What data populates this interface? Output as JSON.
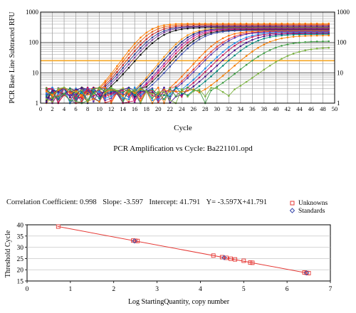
{
  "chart_data": [
    {
      "type": "line",
      "title": "PCR Amplification vs Cycle: Ba221101.opd",
      "xlabel": "Cycle",
      "ylabel": "PCR Base Line Subtracted RFU",
      "xlim": [
        0,
        50
      ],
      "ylim": [
        1,
        1000
      ],
      "yscale": "log",
      "grid": true,
      "x_ticks": [
        "0",
        "2",
        "4",
        "6",
        "8",
        "10",
        "12",
        "14",
        "16",
        "18",
        "20",
        "22",
        "24",
        "26",
        "28",
        "30",
        "32",
        "34",
        "36",
        "38",
        "40",
        "42",
        "44",
        "46",
        "48",
        "50"
      ],
      "y_ticks": [
        "1",
        "10",
        "100",
        "1000"
      ],
      "threshold": 25,
      "threshold_color": "#f5a623",
      "series": [
        {
          "color": "#ff7f00",
          "y0": 18,
          "k": 0.65,
          "top": 420
        },
        {
          "color": "#e8641a",
          "y0": 18.5,
          "k": 0.62,
          "top": 390
        },
        {
          "color": "#c62828",
          "y0": 19,
          "k": 0.6,
          "top": 360
        },
        {
          "color": "#2e3b8c",
          "y0": 19.5,
          "k": 0.58,
          "top": 340
        },
        {
          "color": "#7b3fa0",
          "y0": 20,
          "k": 0.57,
          "top": 330
        },
        {
          "color": "#111111",
          "y0": 20.5,
          "k": 0.56,
          "top": 310
        },
        {
          "color": "#ff9a1f",
          "y0": 24.5,
          "k": 0.6,
          "top": 300
        },
        {
          "color": "#1b2a7a",
          "y0": 25,
          "k": 0.58,
          "top": 290
        },
        {
          "color": "#8e24aa",
          "y0": 25.5,
          "k": 0.58,
          "top": 280
        },
        {
          "color": "#d81b60",
          "y0": 26,
          "k": 0.56,
          "top": 270
        },
        {
          "color": "#222222",
          "y0": 26.5,
          "k": 0.55,
          "top": 260
        },
        {
          "color": "#3949ab",
          "y0": 27,
          "k": 0.55,
          "top": 250
        },
        {
          "color": "#ff6f00",
          "y0": 30.5,
          "k": 0.55,
          "top": 240
        },
        {
          "color": "#e53935",
          "y0": 31.5,
          "k": 0.53,
          "top": 230
        },
        {
          "color": "#5e35b1",
          "y0": 32,
          "k": 0.52,
          "top": 225
        },
        {
          "color": "#1e88e5",
          "y0": 33.5,
          "k": 0.5,
          "top": 215
        },
        {
          "color": "#c2185b",
          "y0": 34,
          "k": 0.5,
          "top": 205
        },
        {
          "color": "#4a148c",
          "y0": 35,
          "k": 0.48,
          "top": 195
        },
        {
          "color": "#00897b",
          "y0": 36,
          "k": 0.47,
          "top": 185
        },
        {
          "color": "#f57c00",
          "y0": 38,
          "k": 0.45,
          "top": 170
        },
        {
          "color": "#43a047",
          "y0": 39,
          "k": 0.42,
          "top": 110
        },
        {
          "color": "#7cb342",
          "y0": 42,
          "k": 0.4,
          "top": 70
        }
      ]
    },
    {
      "type": "scatter",
      "xlabel": "Log StartingQuantity, copy number",
      "ylabel": "Threshold Cycle",
      "xlim": [
        0,
        7
      ],
      "ylim": [
        15,
        40
      ],
      "x_ticks": [
        "0",
        "1",
        "2",
        "3",
        "4",
        "5",
        "6",
        "7"
      ],
      "y_ticks": [
        "15",
        "20",
        "25",
        "30",
        "35",
        "40"
      ],
      "legend_position": "top-right",
      "fit": {
        "slope": -3.597,
        "intercept": 41.791
      },
      "series": [
        {
          "name": "Unknowns",
          "marker": "square",
          "color": "#e53935",
          "points": [
            [
              0.72,
              39.2
            ],
            [
              2.45,
              33.0
            ],
            [
              2.5,
              32.9
            ],
            [
              2.55,
              32.8
            ],
            [
              4.3,
              26.3
            ],
            [
              4.5,
              25.6
            ],
            [
              4.6,
              25.3
            ],
            [
              4.7,
              24.9
            ],
            [
              4.8,
              24.6
            ],
            [
              5.0,
              24.0
            ],
            [
              5.15,
              23.2
            ],
            [
              5.2,
              23.1
            ],
            [
              6.4,
              18.8
            ],
            [
              6.45,
              18.6
            ],
            [
              6.5,
              18.5
            ]
          ]
        },
        {
          "name": "Standards",
          "marker": "diamond",
          "color": "#3949ab",
          "points": [
            [
              2.48,
              32.8
            ],
            [
              4.55,
              25.4
            ],
            [
              6.45,
              18.6
            ]
          ]
        }
      ]
    }
  ],
  "stats": {
    "correlation": "Correlation Coefficient: 0.998",
    "slope": "Slope: -3.597",
    "intercept": "Intercept: 41.791",
    "equation": "Y= -3.597X+41.791"
  }
}
